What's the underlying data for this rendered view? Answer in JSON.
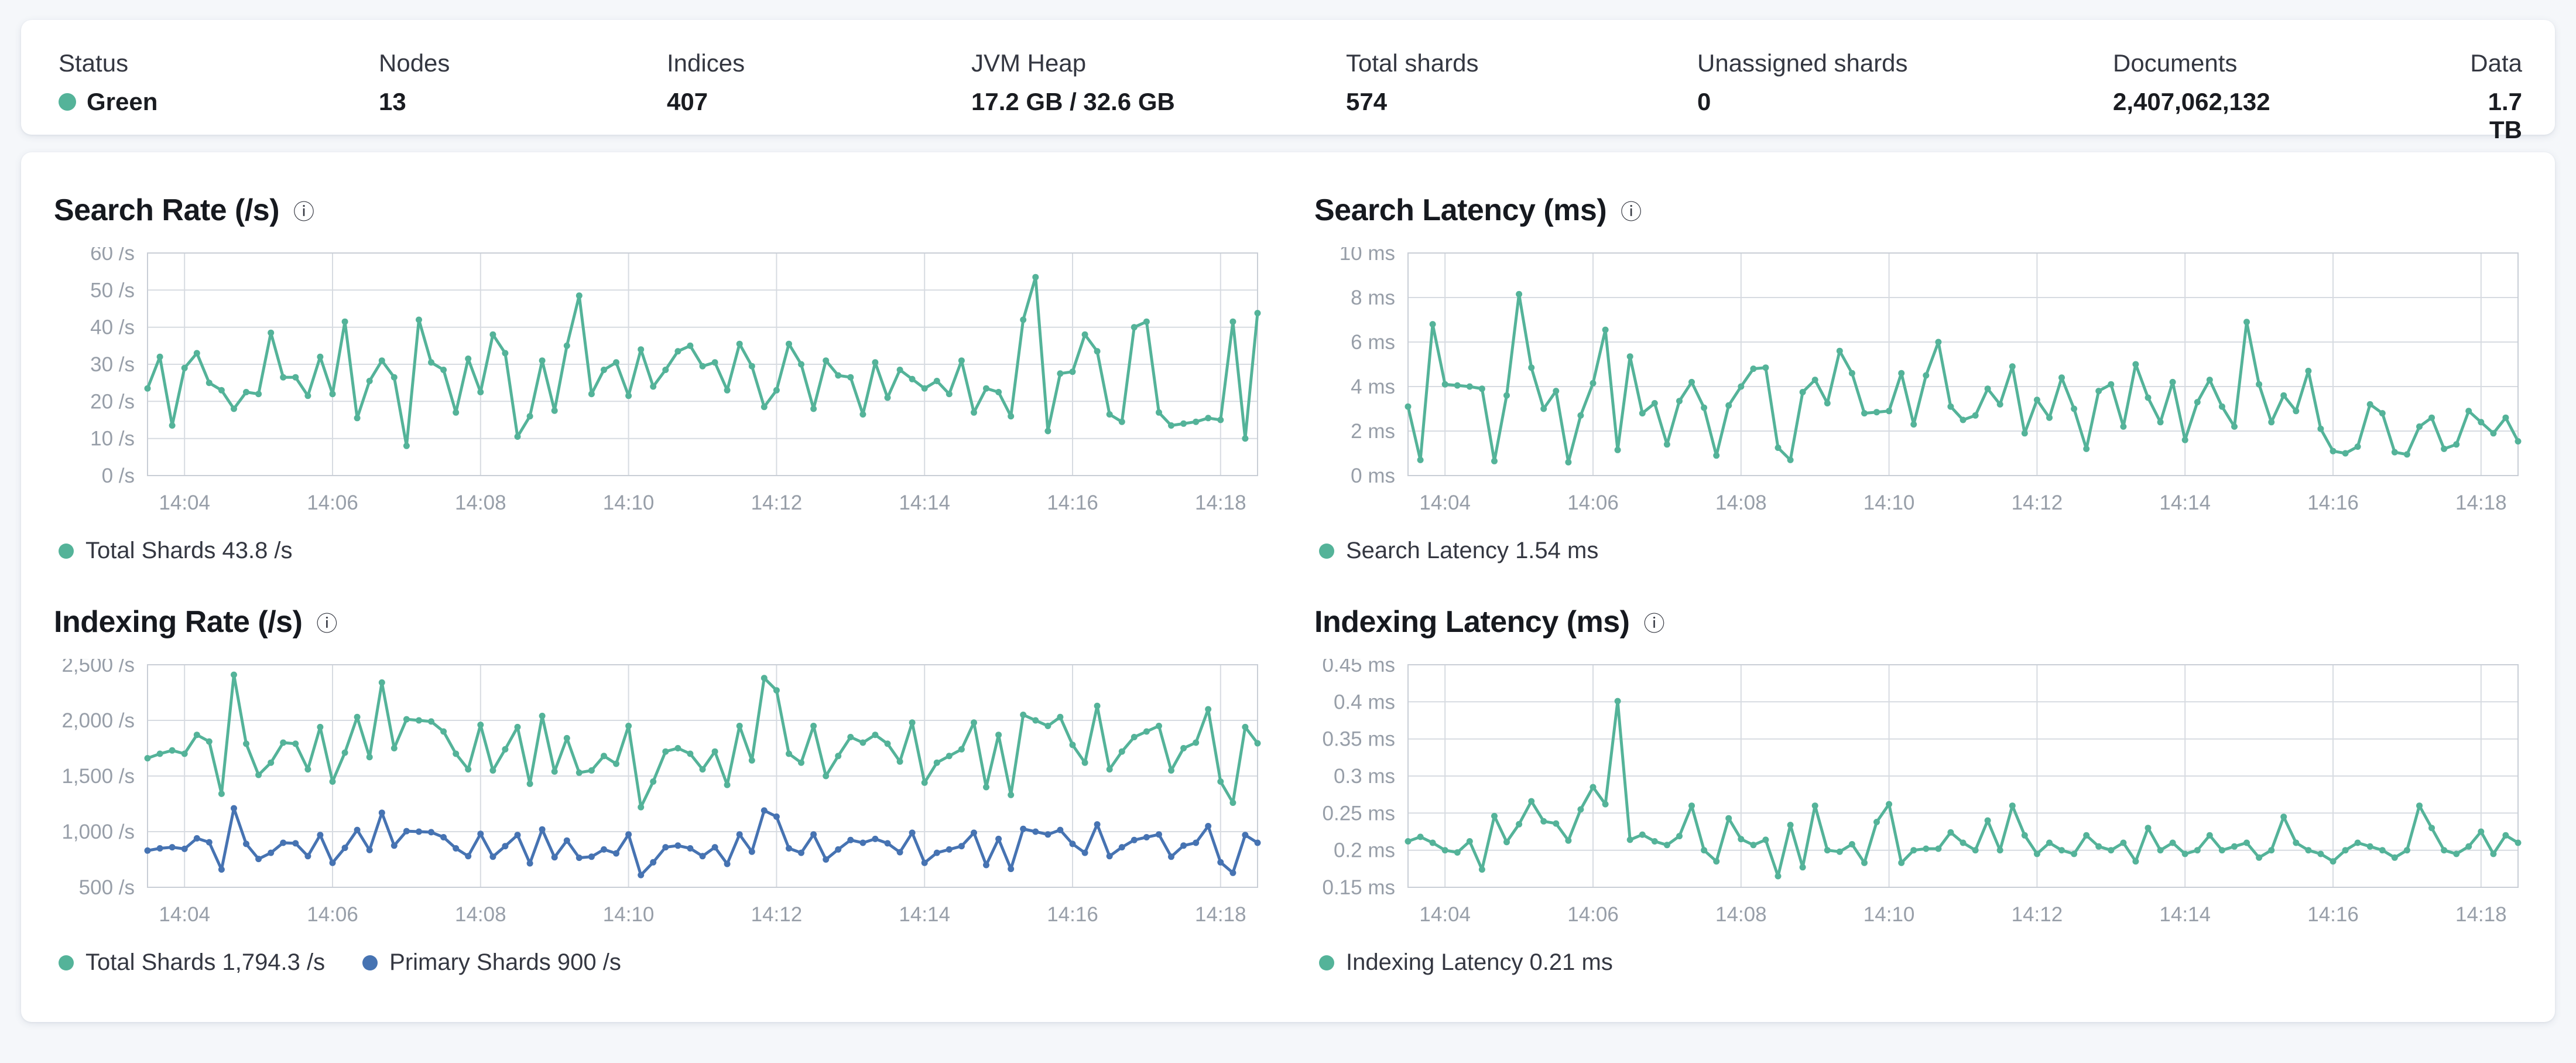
{
  "colors": {
    "teal": "#54b399",
    "blue": "#4673b2",
    "status_green": "#54b399",
    "grid": "#d7dbe1",
    "plot_border": "#c9ced6",
    "tick_text": "#979ea8"
  },
  "icons": {
    "info": "ⓘ"
  },
  "header": {
    "stats": [
      {
        "label": "Status",
        "value": "Green",
        "dot_color": "#54b399"
      },
      {
        "label": "Nodes",
        "value": "13"
      },
      {
        "label": "Indices",
        "value": "407"
      },
      {
        "label": "JVM Heap",
        "value": "17.2 GB / 32.6 GB"
      },
      {
        "label": "Total shards",
        "value": "574"
      },
      {
        "label": "Unassigned shards",
        "value": "0"
      },
      {
        "label": "Documents",
        "value": "2,407,062,132"
      },
      {
        "label": "Data",
        "value": "1.7 TB"
      }
    ]
  },
  "charts": [
    {
      "title": "Search Rate (/s)",
      "legend": [
        {
          "label": "Total Shards 43.8 /s",
          "color": "#54b399"
        }
      ],
      "chart_data": {
        "type": "line",
        "ylabel": "/s",
        "ylim": [
          0,
          60
        ],
        "t_max": 900,
        "y_ticks": [
          {
            "value": 60,
            "label": "60 /s"
          },
          {
            "value": 50,
            "label": "50 /s"
          },
          {
            "value": 40,
            "label": "40 /s"
          },
          {
            "value": 30,
            "label": "30 /s"
          },
          {
            "value": 20,
            "label": "20 /s"
          },
          {
            "value": 10,
            "label": "10 /s"
          },
          {
            "value": 0,
            "label": "0 /s"
          }
        ],
        "x_ticks": [
          {
            "t": 30,
            "label": "14:04"
          },
          {
            "t": 150,
            "label": "14:06"
          },
          {
            "t": 270,
            "label": "14:08"
          },
          {
            "t": 390,
            "label": "14:10"
          },
          {
            "t": 510,
            "label": "14:12"
          },
          {
            "t": 630,
            "label": "14:14"
          },
          {
            "t": 750,
            "label": "14:16"
          },
          {
            "t": 870,
            "label": "14:18"
          }
        ],
        "series": [
          {
            "name": "Total Shards",
            "color": "#54b399",
            "values": [
              23.5,
              32,
              13.5,
              29,
              33,
              25,
              23,
              18,
              22.5,
              22,
              38.5,
              26.5,
              26.5,
              21.5,
              32,
              22,
              41.5,
              15.5,
              25.5,
              31,
              26.5,
              8,
              42,
              30.5,
              28.5,
              17,
              31.5,
              22.5,
              38,
              33,
              10.5,
              16,
              31,
              17.5,
              35,
              48.5,
              22,
              28.5,
              30.5,
              21.5,
              34,
              24,
              28.5,
              33.5,
              35,
              29.5,
              30.5,
              23,
              35.5,
              29.5,
              18.5,
              23,
              35.5,
              30,
              18,
              31,
              27,
              26.5,
              16.5,
              30.5,
              21,
              28.5,
              26,
              23.5,
              25.5,
              22,
              31,
              17,
              23.5,
              22.5,
              16,
              42,
              53.5,
              12,
              27.5,
              28,
              38,
              33.5,
              16.5,
              14.5,
              40,
              41.5,
              17,
              13.5,
              14,
              14.5,
              15.5,
              15,
              41.5,
              10,
              43.8
            ]
          }
        ]
      }
    },
    {
      "title": "Search Latency (ms)",
      "legend": [
        {
          "label": "Search Latency 1.54 ms",
          "color": "#54b399"
        }
      ],
      "chart_data": {
        "type": "line",
        "ylabel": "ms",
        "ylim": [
          0,
          10
        ],
        "t_max": 900,
        "y_ticks": [
          {
            "value": 10,
            "label": "10 ms"
          },
          {
            "value": 8,
            "label": "8 ms"
          },
          {
            "value": 6,
            "label": "6 ms"
          },
          {
            "value": 4,
            "label": "4 ms"
          },
          {
            "value": 2,
            "label": "2 ms"
          },
          {
            "value": 0,
            "label": "0 ms"
          }
        ],
        "x_ticks": [
          {
            "t": 30,
            "label": "14:04"
          },
          {
            "t": 150,
            "label": "14:06"
          },
          {
            "t": 270,
            "label": "14:08"
          },
          {
            "t": 390,
            "label": "14:10"
          },
          {
            "t": 510,
            "label": "14:12"
          },
          {
            "t": 630,
            "label": "14:14"
          },
          {
            "t": 750,
            "label": "14:16"
          },
          {
            "t": 870,
            "label": "14:18"
          }
        ],
        "series": [
          {
            "name": "Search Latency",
            "color": "#54b399",
            "values": [
              3.1,
              0.7,
              6.8,
              4.1,
              4.05,
              4.0,
              3.9,
              0.65,
              3.6,
              8.15,
              4.85,
              3.0,
              3.8,
              0.6,
              2.7,
              4.15,
              6.55,
              1.15,
              5.35,
              2.8,
              3.25,
              1.4,
              3.35,
              4.2,
              3.05,
              0.9,
              3.15,
              4.0,
              4.8,
              4.85,
              1.25,
              0.7,
              3.75,
              4.3,
              3.25,
              5.6,
              4.6,
              2.8,
              2.85,
              2.9,
              4.6,
              2.3,
              4.5,
              6.0,
              3.1,
              2.5,
              2.7,
              3.9,
              3.2,
              4.9,
              1.9,
              3.4,
              2.6,
              4.4,
              3.0,
              1.2,
              3.8,
              4.1,
              2.2,
              5.0,
              3.5,
              2.4,
              4.2,
              1.6,
              3.3,
              4.3,
              3.1,
              2.2,
              6.9,
              4.1,
              2.4,
              3.6,
              2.9,
              4.7,
              2.1,
              1.1,
              1.0,
              1.3,
              3.2,
              2.8,
              1.05,
              0.95,
              2.2,
              2.6,
              1.2,
              1.4,
              2.9,
              2.4,
              1.9,
              2.6,
              1.54
            ]
          }
        ]
      }
    },
    {
      "title": "Indexing Rate (/s)",
      "legend": [
        {
          "label": "Total Shards 1,794.3 /s",
          "color": "#54b399"
        },
        {
          "label": "Primary Shards 900 /s",
          "color": "#4673b2"
        }
      ],
      "chart_data": {
        "type": "line",
        "ylabel": "/s",
        "ylim": [
          500,
          2500
        ],
        "t_max": 900,
        "y_ticks": [
          {
            "value": 2500,
            "label": "2,500 /s"
          },
          {
            "value": 2000,
            "label": "2,000 /s"
          },
          {
            "value": 1500,
            "label": "1,500 /s"
          },
          {
            "value": 1000,
            "label": "1,000 /s"
          },
          {
            "value": 500,
            "label": "500 /s"
          }
        ],
        "x_ticks": [
          {
            "t": 30,
            "label": "14:04"
          },
          {
            "t": 150,
            "label": "14:06"
          },
          {
            "t": 270,
            "label": "14:08"
          },
          {
            "t": 390,
            "label": "14:10"
          },
          {
            "t": 510,
            "label": "14:12"
          },
          {
            "t": 630,
            "label": "14:14"
          },
          {
            "t": 750,
            "label": "14:16"
          },
          {
            "t": 870,
            "label": "14:18"
          }
        ],
        "series": [
          {
            "name": "Total Shards",
            "color": "#54b399",
            "values": [
              1660,
              1700,
              1730,
              1700,
              1870,
              1810,
              1340,
              2410,
              1790,
              1510,
              1620,
              1800,
              1790,
              1560,
              1940,
              1450,
              1710,
              2030,
              1670,
              2340,
              1750,
              2010,
              2000,
              1990,
              1900,
              1700,
              1560,
              1960,
              1550,
              1740,
              1940,
              1430,
              2040,
              1540,
              1840,
              1530,
              1550,
              1680,
              1610,
              1950,
              1220,
              1450,
              1720,
              1750,
              1700,
              1560,
              1720,
              1420,
              1950,
              1640,
              2380,
              2270,
              1700,
              1620,
              1950,
              1500,
              1680,
              1850,
              1800,
              1870,
              1790,
              1630,
              1980,
              1440,
              1620,
              1680,
              1740,
              1980,
              1400,
              1870,
              1330,
              2050,
              2000,
              1950,
              2030,
              1780,
              1620,
              2130,
              1560,
              1720,
              1850,
              1900,
              1950,
              1550,
              1750,
              1800,
              2100,
              1450,
              1260,
              1940,
              1794.3
            ]
          },
          {
            "name": "Primary Shards",
            "color": "#4673b2",
            "values": [
              830,
              850,
              860,
              845,
              940,
              905,
              660,
              1210,
              890,
              755,
              810,
              900,
              895,
              780,
              970,
              720,
              855,
              1015,
              835,
              1170,
              875,
              1005,
              1000,
              995,
              950,
              850,
              780,
              980,
              775,
              870,
              970,
              715,
              1020,
              770,
              920,
              765,
              775,
              840,
              805,
              975,
              610,
              725,
              860,
              875,
              850,
              780,
              860,
              710,
              975,
              820,
              1190,
              1135,
              850,
              810,
              975,
              750,
              840,
              925,
              900,
              935,
              895,
              815,
              990,
              720,
              810,
              840,
              870,
              990,
              700,
              935,
              665,
              1025,
              1000,
              975,
              1015,
              890,
              810,
              1065,
              780,
              860,
              925,
              950,
              975,
              775,
              875,
              900,
              1050,
              725,
              630,
              970,
              900
            ]
          }
        ]
      }
    },
    {
      "title": "Indexing Latency (ms)",
      "legend": [
        {
          "label": "Indexing Latency 0.21 ms",
          "color": "#54b399"
        }
      ],
      "chart_data": {
        "type": "line",
        "ylabel": "ms",
        "ylim": [
          0.15,
          0.45
        ],
        "t_max": 900,
        "y_ticks": [
          {
            "value": 0.45,
            "label": "0.45 ms"
          },
          {
            "value": 0.4,
            "label": "0.4 ms"
          },
          {
            "value": 0.35,
            "label": "0.35 ms"
          },
          {
            "value": 0.3,
            "label": "0.3 ms"
          },
          {
            "value": 0.25,
            "label": "0.25 ms"
          },
          {
            "value": 0.2,
            "label": "0.2 ms"
          },
          {
            "value": 0.15,
            "label": "0.15 ms"
          }
        ],
        "x_ticks": [
          {
            "t": 30,
            "label": "14:04"
          },
          {
            "t": 150,
            "label": "14:06"
          },
          {
            "t": 270,
            "label": "14:08"
          },
          {
            "t": 390,
            "label": "14:10"
          },
          {
            "t": 510,
            "label": "14:12"
          },
          {
            "t": 630,
            "label": "14:14"
          },
          {
            "t": 750,
            "label": "14:16"
          },
          {
            "t": 870,
            "label": "14:18"
          }
        ],
        "series": [
          {
            "name": "Indexing Latency",
            "color": "#54b399",
            "values": [
              0.212,
              0.218,
              0.21,
              0.2,
              0.197,
              0.212,
              0.174,
              0.246,
              0.211,
              0.235,
              0.266,
              0.239,
              0.236,
              0.213,
              0.255,
              0.285,
              0.262,
              0.401,
              0.214,
              0.221,
              0.212,
              0.207,
              0.219,
              0.26,
              0.2,
              0.185,
              0.243,
              0.215,
              0.207,
              0.214,
              0.165,
              0.234,
              0.177,
              0.26,
              0.2,
              0.198,
              0.208,
              0.183,
              0.238,
              0.262,
              0.183,
              0.2,
              0.202,
              0.202,
              0.224,
              0.21,
              0.2,
              0.24,
              0.2,
              0.26,
              0.22,
              0.195,
              0.21,
              0.2,
              0.195,
              0.22,
              0.205,
              0.2,
              0.21,
              0.185,
              0.23,
              0.2,
              0.21,
              0.195,
              0.2,
              0.22,
              0.2,
              0.205,
              0.21,
              0.19,
              0.2,
              0.245,
              0.21,
              0.2,
              0.195,
              0.185,
              0.2,
              0.21,
              0.205,
              0.2,
              0.19,
              0.2,
              0.26,
              0.23,
              0.2,
              0.195,
              0.205,
              0.225,
              0.195,
              0.22,
              0.21
            ]
          }
        ]
      }
    }
  ]
}
